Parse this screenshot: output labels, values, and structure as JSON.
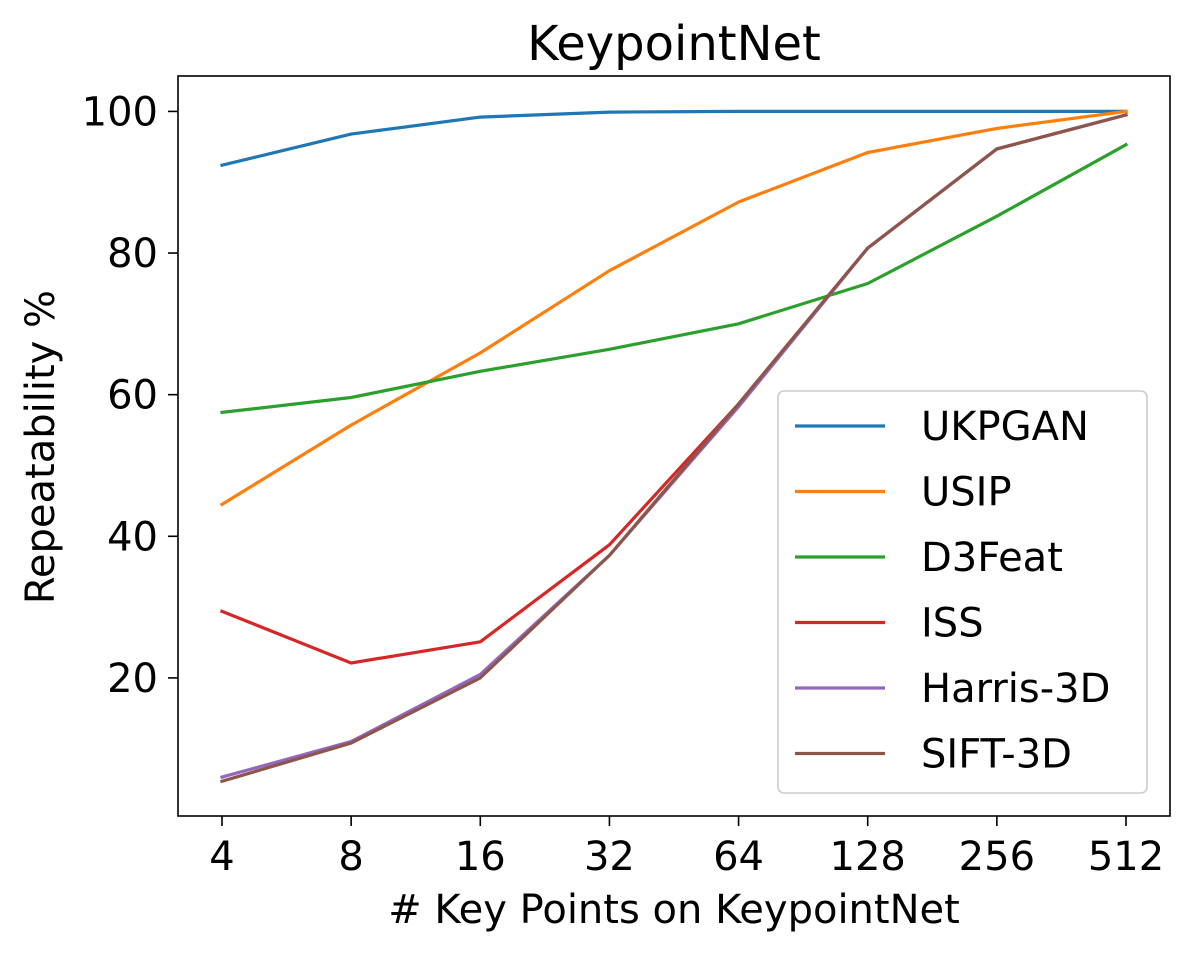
{
  "chart_data": {
    "type": "line",
    "title": "KeypointNet",
    "xlabel": "# Key Points on KeypointNet",
    "ylabel": "Repeatability %",
    "x": [
      4,
      8,
      16,
      32,
      64,
      128,
      256,
      512
    ],
    "x_tick_labels": [
      "4",
      "8",
      "16",
      "32",
      "64",
      "128",
      "256",
      "512"
    ],
    "x_scale": "log2",
    "y_ticks": [
      20,
      40,
      60,
      80,
      100
    ],
    "y_tick_labels": [
      "20",
      "40",
      "60",
      "80",
      "100"
    ],
    "ylim": [
      0.5,
      105
    ],
    "grid": false,
    "legend_position": "lower-right",
    "series": [
      {
        "name": "UKPGAN",
        "color": "#1f77b4",
        "values": [
          92.4,
          96.8,
          99.2,
          99.9,
          100,
          100,
          100,
          100
        ]
      },
      {
        "name": "USIP",
        "color": "#ff7f0e",
        "values": [
          44.5,
          55.7,
          65.9,
          77.5,
          87.2,
          94.2,
          97.6,
          100
        ]
      },
      {
        "name": "D3Feat",
        "color": "#2ca02c",
        "values": [
          57.5,
          59.6,
          63.3,
          66.4,
          70.0,
          75.7,
          85.2,
          95.3
        ]
      },
      {
        "name": "ISS",
        "color": "#d62728",
        "values": [
          29.4,
          22.1,
          25.1,
          38.8,
          58.7,
          80.7,
          94.7,
          99.5
        ]
      },
      {
        "name": "Harris-3D",
        "color": "#9467bd",
        "values": [
          6.0,
          11.0,
          20.5,
          37.3,
          58.3,
          80.7,
          94.7,
          99.5
        ]
      },
      {
        "name": "SIFT-3D",
        "color": "#8c564b",
        "values": [
          5.4,
          10.8,
          20.0,
          37.3,
          58.7,
          80.7,
          94.7,
          99.5
        ]
      }
    ]
  }
}
